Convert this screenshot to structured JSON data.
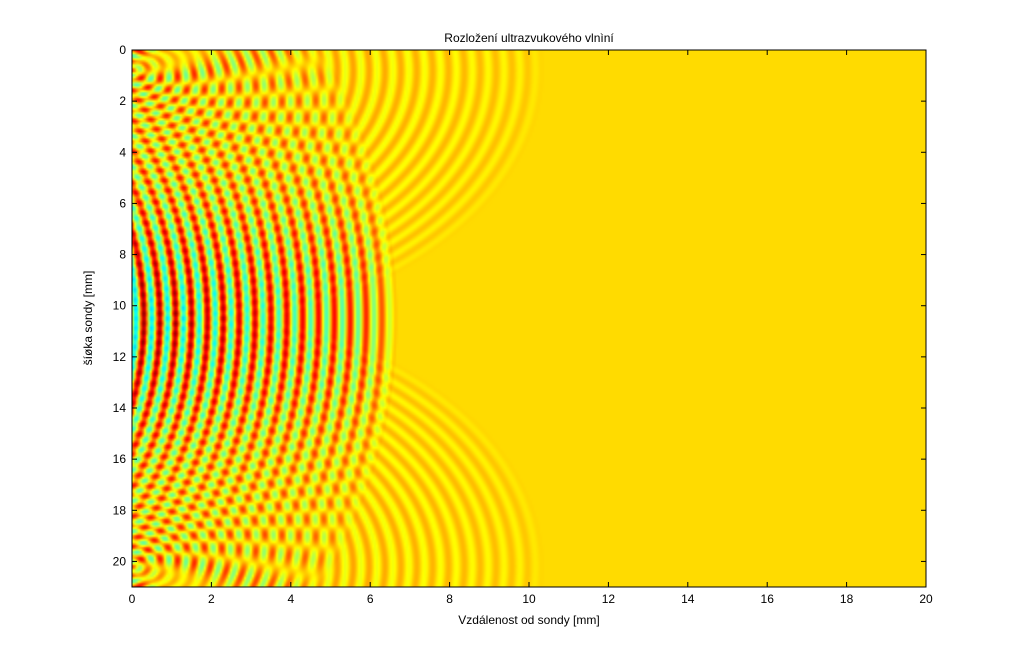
{
  "chart_data": {
    "type": "heatmap",
    "title": "Rozložení ultrazvukového vlnìní",
    "xlabel": "Vzdálenost od sondy [mm]",
    "ylabel": "šíøka sondy [mm]",
    "xlim": [
      0,
      20
    ],
    "ylim": [
      0,
      21
    ],
    "y_reversed": true,
    "x_ticks": [
      "0",
      "2",
      "4",
      "6",
      "8",
      "10",
      "12",
      "14",
      "16",
      "18",
      "20"
    ],
    "y_ticks": [
      "0",
      "2",
      "4",
      "6",
      "8",
      "10",
      "12",
      "14",
      "16",
      "18",
      "20"
    ],
    "grid": false,
    "colormap": "jet",
    "background_color": "#9bd236",
    "wave": {
      "focus_depth": 10.5,
      "front_apex_x": 6.7,
      "front_edge_x": 10.4,
      "front_edge_y_top": 0.8,
      "front_edge_y_bottom": 20.2,
      "wavelength": 0.4
    }
  }
}
